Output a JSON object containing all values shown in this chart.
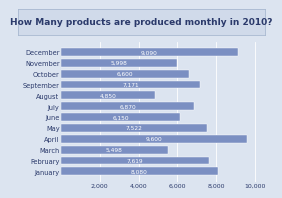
{
  "title": "How Many products are produced monthly in 2010?",
  "months": [
    "January",
    "February",
    "March",
    "April",
    "May",
    "June",
    "July",
    "August",
    "September",
    "October",
    "November",
    "December"
  ],
  "values": [
    8080,
    7619,
    5498,
    9600,
    7522,
    6150,
    6870,
    4850,
    7171,
    6600,
    5998,
    9090
  ],
  "bar_color": "#7b8fc2",
  "text_color": "#2b3a6b",
  "bg_color": "#dce4f0",
  "title_box_color": "#d0daea",
  "title_box_edge": "#a8b8d0",
  "xlim": [
    0,
    10500
  ],
  "xticks": [
    2000,
    4000,
    6000,
    8000,
    10000
  ],
  "title_fontsize": 6.5,
  "tick_fontsize": 4.5,
  "label_fontsize": 4.8,
  "value_fontsize": 4.2
}
